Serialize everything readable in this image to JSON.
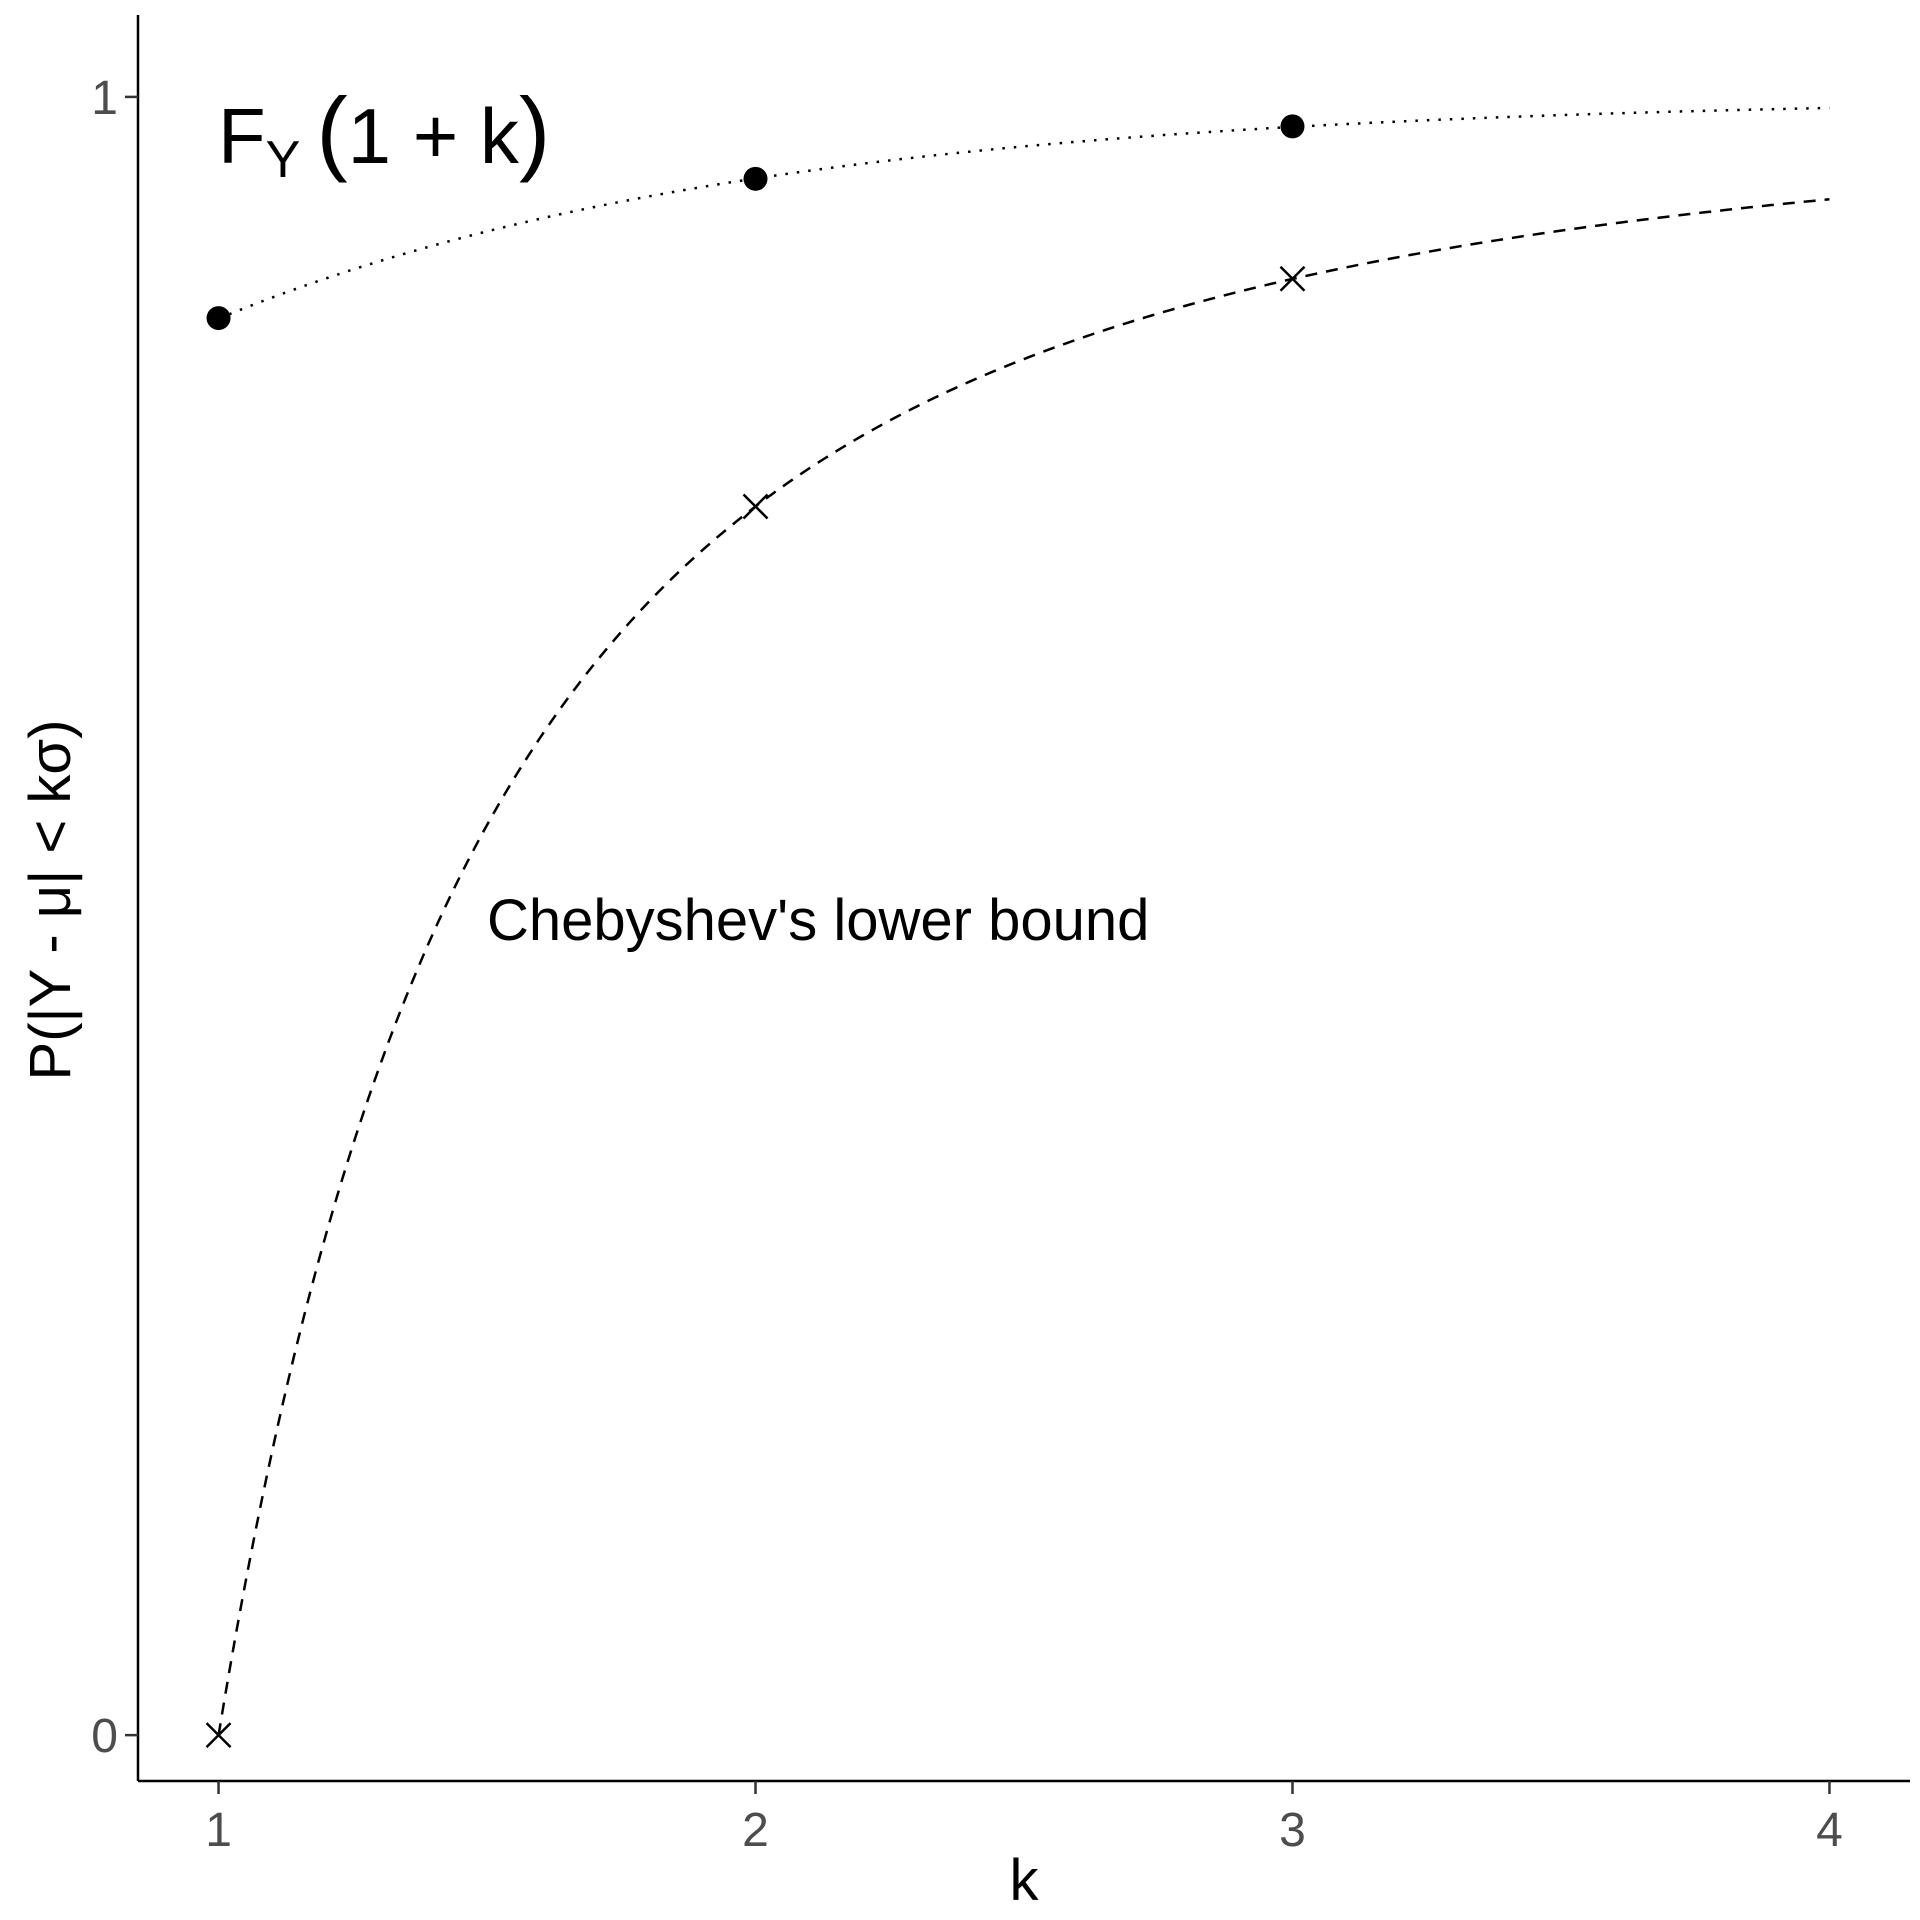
{
  "chart_data": {
    "type": "line",
    "title": "",
    "xlabel": "k",
    "ylabel": "P(|Y - μ| < kσ)",
    "xlim": [
      0.85,
      4.15
    ],
    "ylim": [
      -0.028,
      1.05
    ],
    "x_ticks": [
      1,
      2,
      3,
      4
    ],
    "y_ticks": [
      0,
      1
    ],
    "x_tick_labels": [
      "1",
      "2",
      "3",
      "4"
    ],
    "y_tick_labels": [
      "0",
      "1"
    ],
    "grid": false,
    "legend": "none",
    "series": [
      {
        "curve": "1 - exp(-(1+k))",
        "line_style": "dotted",
        "marker": "filled-circle",
        "x": [
          1,
          2,
          3
        ],
        "y": [
          0.865,
          0.95,
          0.982
        ],
        "curve_x_range": [
          1,
          4
        ]
      },
      {
        "curve": "1 - 1/k^2",
        "line_style": "dashed",
        "marker": "cross",
        "x": [
          1,
          2,
          3
        ],
        "y": [
          0,
          0.75,
          0.889
        ],
        "curve_x_range": [
          1,
          4
        ]
      }
    ],
    "annotations": [
      {
        "label_main": "F",
        "label_sub": "Y",
        "label_paren_open": "(",
        "label_expr": "1 + k",
        "label_paren_close": ")",
        "at": [
          1.0,
          0.975
        ]
      },
      {
        "text": "Chebyshev's lower bound",
        "at": [
          1.5,
          0.485
        ]
      }
    ]
  }
}
